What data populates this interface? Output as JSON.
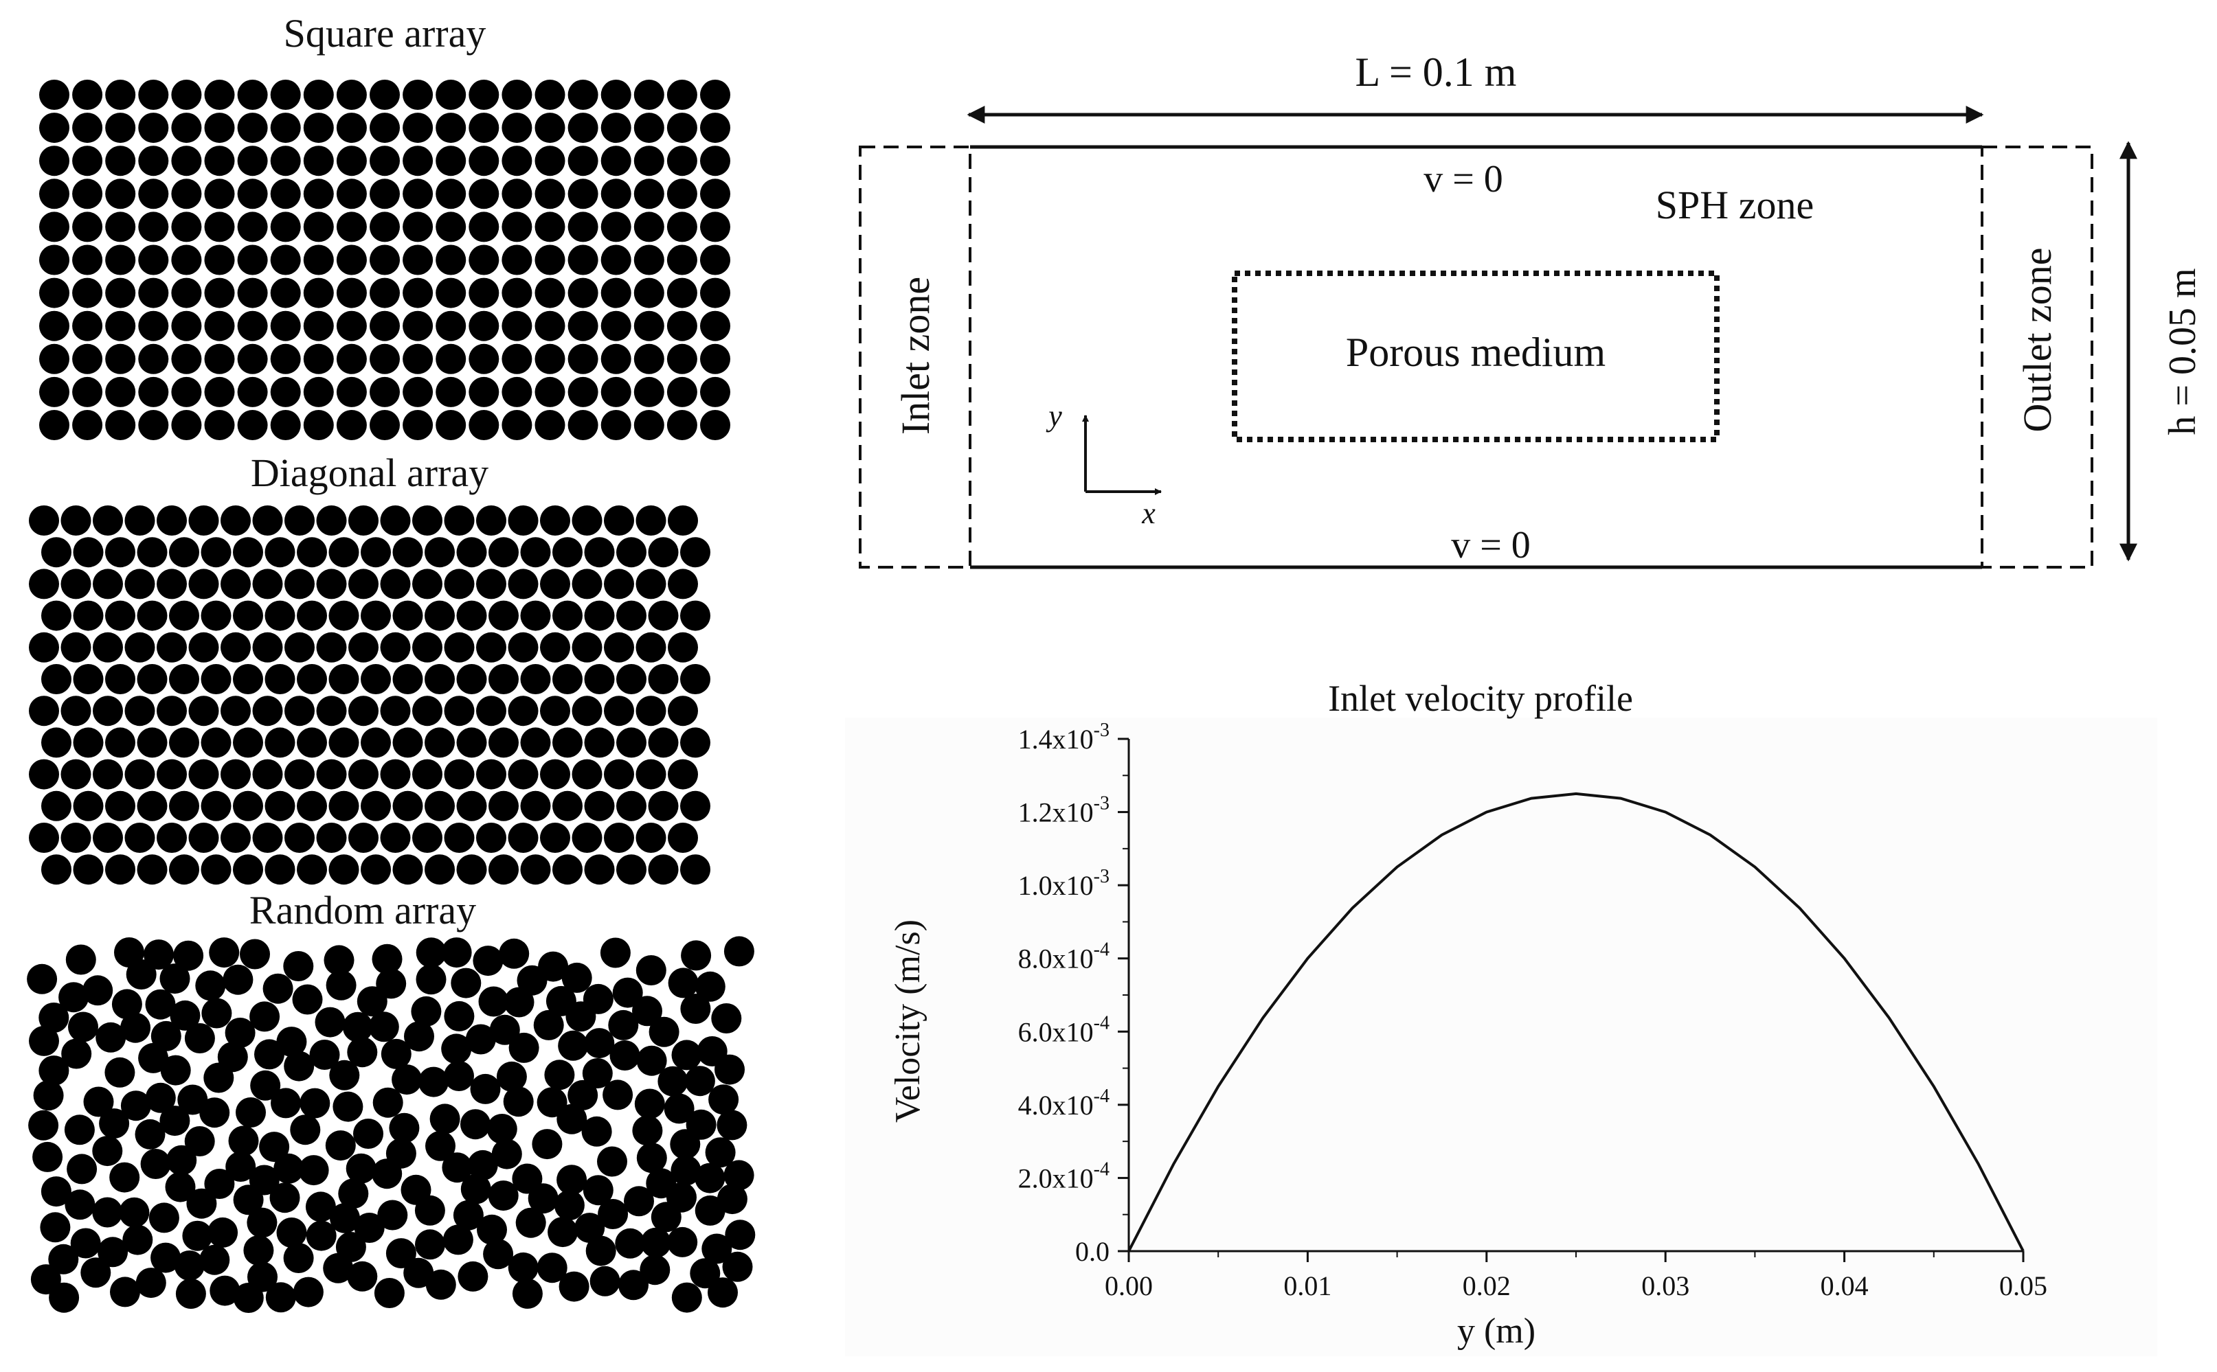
{
  "arrays": {
    "square": {
      "label": "Square array",
      "rows": 11,
      "cols": 21
    },
    "diagonal": {
      "label": "Diagonal array",
      "rows": 12,
      "cols": 21
    },
    "random": {
      "label": "Random array",
      "count": 255
    }
  },
  "domain": {
    "length_label": "L = 0.1 m",
    "height_label": "h = 0.05 m",
    "top_bc": "v = 0",
    "bottom_bc": "v = 0",
    "sph_zone": "SPH zone",
    "porous": "Porous medium",
    "inlet": "Inlet zone",
    "outlet": "Outlet zone",
    "axis_x": "x",
    "axis_y": "y"
  },
  "chart_data": {
    "type": "line",
    "title": "Inlet velocity profile",
    "xlabel": "y (m)",
    "ylabel": "Velocity (m/s)",
    "xlim": [
      0,
      0.05
    ],
    "ylim": [
      0,
      0.0014
    ],
    "xticks": [
      {
        "v": 0.0,
        "label": "0.00"
      },
      {
        "v": 0.01,
        "label": "0.01"
      },
      {
        "v": 0.02,
        "label": "0.02"
      },
      {
        "v": 0.03,
        "label": "0.03"
      },
      {
        "v": 0.04,
        "label": "0.04"
      },
      {
        "v": 0.05,
        "label": "0.05"
      }
    ],
    "yticks": [
      {
        "v": 0.0,
        "m": "0.0",
        "e": ""
      },
      {
        "v": 0.0002,
        "m": "2.0x10",
        "e": "-4"
      },
      {
        "v": 0.0004,
        "m": "4.0x10",
        "e": "-4"
      },
      {
        "v": 0.0006,
        "m": "6.0x10",
        "e": "-4"
      },
      {
        "v": 0.0008,
        "m": "8.0x10",
        "e": "-4"
      },
      {
        "v": 0.001,
        "m": "1.0x10",
        "e": "-3"
      },
      {
        "v": 0.0012,
        "m": "1.2x10",
        "e": "-3"
      },
      {
        "v": 0.0014,
        "m": "1.4x10",
        "e": "-3"
      }
    ],
    "series": [
      {
        "x": [
          0,
          0.0025,
          0.005,
          0.0075,
          0.01,
          0.0125,
          0.015,
          0.0175,
          0.02,
          0.0225,
          0.025,
          0.0275,
          0.03,
          0.0325,
          0.035,
          0.0375,
          0.04,
          0.0425,
          0.045,
          0.0475,
          0.05
        ],
        "y": [
          0,
          0.0002375,
          0.00045,
          0.0006375,
          0.0008,
          0.0009375,
          0.00105,
          0.0011375,
          0.0012,
          0.0012375,
          0.00125,
          0.0012375,
          0.0012,
          0.0011375,
          0.00105,
          0.0009375,
          0.0008,
          0.0006375,
          0.00045,
          0.0002375,
          0
        ]
      }
    ]
  }
}
